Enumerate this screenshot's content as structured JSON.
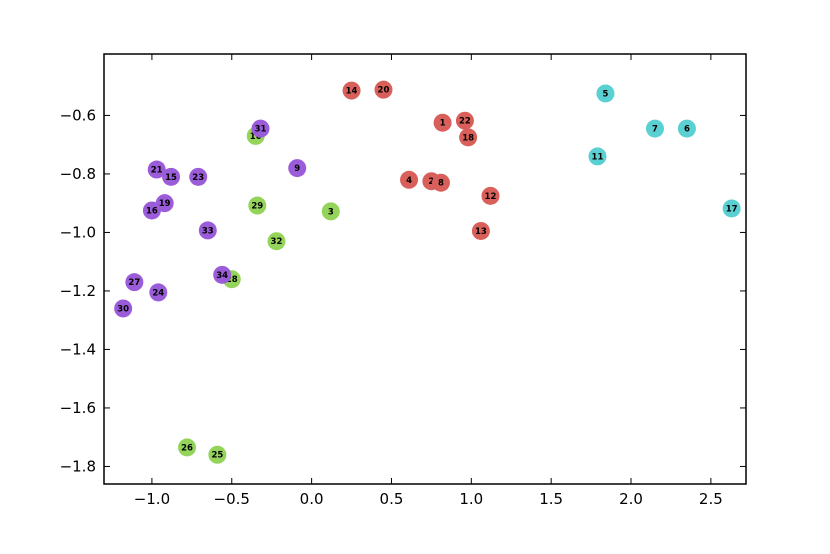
{
  "chart_data": {
    "type": "scatter",
    "title": "",
    "xlabel": "",
    "ylabel": "",
    "xlim": [
      -1.3,
      2.72
    ],
    "ylim": [
      -1.86,
      -0.39
    ],
    "grid": false,
    "legend": "none",
    "xticks": [
      -1.0,
      -0.5,
      0.0,
      0.5,
      1.0,
      1.5,
      2.0,
      2.5
    ],
    "xtick_labels": [
      "−1.0",
      "−0.5",
      "0.0",
      "0.5",
      "1.0",
      "1.5",
      "2.0",
      "2.5"
    ],
    "yticks": [
      -0.6,
      -0.8,
      -1.0,
      -1.2,
      -1.4,
      -1.6,
      -1.8
    ],
    "ytick_labels": [
      "−0.6",
      "−0.8",
      "−1.0",
      "−1.2",
      "−1.4",
      "−1.6",
      "−1.8"
    ],
    "colors": {
      "red": "#d9605a",
      "cyan": "#5bd0d3",
      "purple": "#9b5cd9",
      "green": "#94d45a"
    },
    "points": [
      {
        "label": "1",
        "x": 0.82,
        "y": -0.625,
        "color": "red"
      },
      {
        "label": "2",
        "x": 0.75,
        "y": -0.825,
        "color": "red"
      },
      {
        "label": "3",
        "x": 0.12,
        "y": -0.928,
        "color": "green"
      },
      {
        "label": "4",
        "x": 0.61,
        "y": -0.82,
        "color": "red"
      },
      {
        "label": "5",
        "x": 1.84,
        "y": -0.525,
        "color": "cyan"
      },
      {
        "label": "6",
        "x": 2.35,
        "y": -0.645,
        "color": "cyan"
      },
      {
        "label": "7",
        "x": 2.15,
        "y": -0.645,
        "color": "cyan"
      },
      {
        "label": "8",
        "x": 0.81,
        "y": -0.83,
        "color": "red"
      },
      {
        "label": "9",
        "x": -0.09,
        "y": -0.78,
        "color": "purple"
      },
      {
        "label": "10",
        "x": -0.35,
        "y": -0.67,
        "color": "green"
      },
      {
        "label": "11",
        "x": 1.79,
        "y": -0.74,
        "color": "cyan"
      },
      {
        "label": "12",
        "x": 1.12,
        "y": -0.875,
        "color": "red"
      },
      {
        "label": "13",
        "x": 1.06,
        "y": -0.995,
        "color": "red"
      },
      {
        "label": "14",
        "x": 0.25,
        "y": -0.515,
        "color": "red"
      },
      {
        "label": "15",
        "x": -0.88,
        "y": -0.81,
        "color": "purple"
      },
      {
        "label": "16",
        "x": -1.0,
        "y": -0.925,
        "color": "purple"
      },
      {
        "label": "17",
        "x": 2.63,
        "y": -0.918,
        "color": "cyan"
      },
      {
        "label": "18",
        "x": 0.98,
        "y": -0.675,
        "color": "red"
      },
      {
        "label": "19",
        "x": -0.92,
        "y": -0.9,
        "color": "purple"
      },
      {
        "label": "20",
        "x": 0.45,
        "y": -0.512,
        "color": "red"
      },
      {
        "label": "21",
        "x": -0.97,
        "y": -0.785,
        "color": "purple"
      },
      {
        "label": "22",
        "x": 0.96,
        "y": -0.618,
        "color": "red"
      },
      {
        "label": "23",
        "x": -0.71,
        "y": -0.81,
        "color": "purple"
      },
      {
        "label": "24",
        "x": -0.96,
        "y": -1.205,
        "color": "purple"
      },
      {
        "label": "25",
        "x": -0.59,
        "y": -1.76,
        "color": "green"
      },
      {
        "label": "26",
        "x": -0.78,
        "y": -1.735,
        "color": "green"
      },
      {
        "label": "27",
        "x": -1.11,
        "y": -1.17,
        "color": "purple"
      },
      {
        "label": "28",
        "x": -0.5,
        "y": -1.16,
        "color": "green"
      },
      {
        "label": "29",
        "x": -0.34,
        "y": -0.908,
        "color": "green"
      },
      {
        "label": "30",
        "x": -1.18,
        "y": -1.26,
        "color": "purple"
      },
      {
        "label": "31",
        "x": -0.32,
        "y": -0.645,
        "color": "purple"
      },
      {
        "label": "32",
        "x": -0.22,
        "y": -1.03,
        "color": "green"
      },
      {
        "label": "33",
        "x": -0.65,
        "y": -0.993,
        "color": "purple"
      },
      {
        "label": "34",
        "x": -0.56,
        "y": -1.145,
        "color": "purple"
      }
    ]
  }
}
